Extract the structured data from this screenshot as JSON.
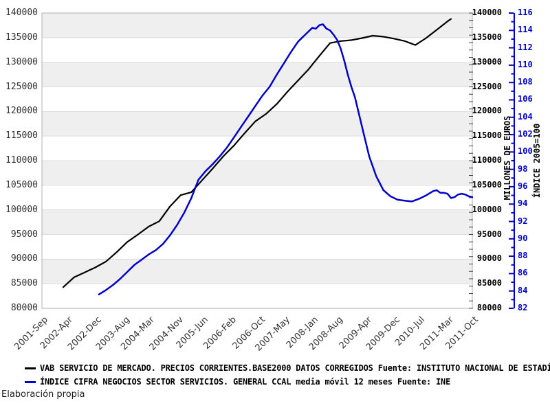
{
  "chart_data": {
    "type": "line",
    "title": "",
    "grid": "horizontal-bands-alternating",
    "legend_position": "bottom-left",
    "x": {
      "domain_months": [
        0,
        121
      ],
      "tick_months": [
        0,
        7,
        15,
        23,
        30,
        38,
        45,
        53,
        61,
        68,
        76,
        83,
        91,
        99,
        106,
        114,
        121
      ],
      "tick_labels": [
        "2001-Sep",
        "2002-Apr",
        "2002-Dec",
        "2003-Aug",
        "2004-Mar",
        "2004-Nov",
        "2005-Jun",
        "2006-Feb",
        "2006-Oct",
        "2007-May",
        "2008-Jan",
        "2008-Aug",
        "2009-Apr",
        "2009-Dec",
        "2010-Jul",
        "2011-Mar",
        "2011-Oct"
      ]
    },
    "axes": {
      "left_euros": {
        "range": [
          80000,
          140000
        ],
        "step": 5000
      },
      "right_euros": {
        "range": [
          80000,
          140000
        ],
        "step": 5000,
        "title": "MILLONES DE EUROS"
      },
      "right_index": {
        "range": [
          82,
          116
        ],
        "step": 2,
        "title": "ÍNDICE 2005=100",
        "color": "#0000cc"
      }
    },
    "series": [
      {
        "id": "vab",
        "legend": "VAB SERVICIO DE MERCADO. PRECIOS CORRIENTES.BASE2000 DATOS CORREGIDOS  Fuente: INSTITUTO NACIONAL DE ESTADÍ",
        "axis": "euros",
        "color": "#000000",
        "points": [
          [
            6,
            84300
          ],
          [
            9,
            86300
          ],
          [
            12,
            87300
          ],
          [
            15,
            88300
          ],
          [
            18,
            89500
          ],
          [
            21,
            91400
          ],
          [
            24,
            93500
          ],
          [
            27,
            95000
          ],
          [
            30,
            96600
          ],
          [
            33,
            97700
          ],
          [
            36,
            100700
          ],
          [
            39,
            103000
          ],
          [
            42,
            103600
          ],
          [
            45,
            106000
          ],
          [
            48,
            108400
          ],
          [
            51,
            110900
          ],
          [
            54,
            113100
          ],
          [
            57,
            115600
          ],
          [
            60,
            118000
          ],
          [
            63,
            119500
          ],
          [
            66,
            121500
          ],
          [
            69,
            124000
          ],
          [
            72,
            126300
          ],
          [
            75,
            128600
          ],
          [
            78,
            131300
          ],
          [
            81,
            133900
          ],
          [
            84,
            134300
          ],
          [
            87,
            134500
          ],
          [
            90,
            134900
          ],
          [
            93,
            135400
          ],
          [
            96,
            135200
          ],
          [
            99,
            134800
          ],
          [
            102,
            134300
          ],
          [
            105,
            133500
          ],
          [
            108,
            134900
          ],
          [
            111,
            136600
          ],
          [
            114,
            138300
          ],
          [
            115,
            138800
          ]
        ]
      },
      {
        "id": "indice",
        "legend": "ÍNDICE CIFRA NEGOCIOS SECTOR SERVICIOS. GENERAL CCAL media móvil 12 meses  Fuente: INE",
        "axis": "index",
        "color": "#0000cc",
        "points": [
          [
            16,
            83.6
          ],
          [
            18,
            84.1
          ],
          [
            20,
            84.7
          ],
          [
            22,
            85.4
          ],
          [
            24,
            86.2
          ],
          [
            26,
            87.0
          ],
          [
            28,
            87.6
          ],
          [
            30,
            88.2
          ],
          [
            32,
            88.7
          ],
          [
            34,
            89.4
          ],
          [
            36,
            90.4
          ],
          [
            38,
            91.6
          ],
          [
            40,
            93.0
          ],
          [
            42,
            94.7
          ],
          [
            44,
            96.8
          ],
          [
            46,
            97.8
          ],
          [
            48,
            98.6
          ],
          [
            50,
            99.5
          ],
          [
            52,
            100.5
          ],
          [
            54,
            101.7
          ],
          [
            56,
            102.9
          ],
          [
            58,
            104.1
          ],
          [
            60,
            105.3
          ],
          [
            62,
            106.5
          ],
          [
            64,
            107.5
          ],
          [
            66,
            108.9
          ],
          [
            68,
            110.2
          ],
          [
            70,
            111.5
          ],
          [
            72,
            112.7
          ],
          [
            74,
            113.5
          ],
          [
            76,
            114.3
          ],
          [
            77,
            114.2
          ],
          [
            78,
            114.6
          ],
          [
            79,
            114.7
          ],
          [
            80,
            114.2
          ],
          [
            81,
            114.0
          ],
          [
            82,
            113.5
          ],
          [
            83,
            112.9
          ],
          [
            84,
            111.9
          ],
          [
            85,
            110.5
          ],
          [
            86,
            108.9
          ],
          [
            87,
            107.5
          ],
          [
            88,
            106.3
          ],
          [
            90,
            102.9
          ],
          [
            92,
            99.5
          ],
          [
            94,
            97.2
          ],
          [
            96,
            95.6
          ],
          [
            98,
            94.9
          ],
          [
            100,
            94.5
          ],
          [
            102,
            94.4
          ],
          [
            104,
            94.3
          ],
          [
            106,
            94.6
          ],
          [
            108,
            95.0
          ],
          [
            110,
            95.5
          ],
          [
            111,
            95.6
          ],
          [
            112,
            95.3
          ],
          [
            113,
            95.3
          ],
          [
            114,
            95.2
          ],
          [
            115,
            94.7
          ],
          [
            116,
            94.8
          ],
          [
            117,
            95.1
          ],
          [
            118,
            95.2
          ],
          [
            119,
            95.1
          ],
          [
            120,
            94.9
          ],
          [
            121,
            94.8
          ]
        ]
      }
    ]
  },
  "colors": {
    "band_gray": "#efefef",
    "gridline": "#dcdcdc",
    "frame": "#b0b0b0",
    "minor_tick": "#444444",
    "series_black": "#000000",
    "series_blue": "#0000cc"
  },
  "footer": {
    "note": "Elaboración propia"
  }
}
